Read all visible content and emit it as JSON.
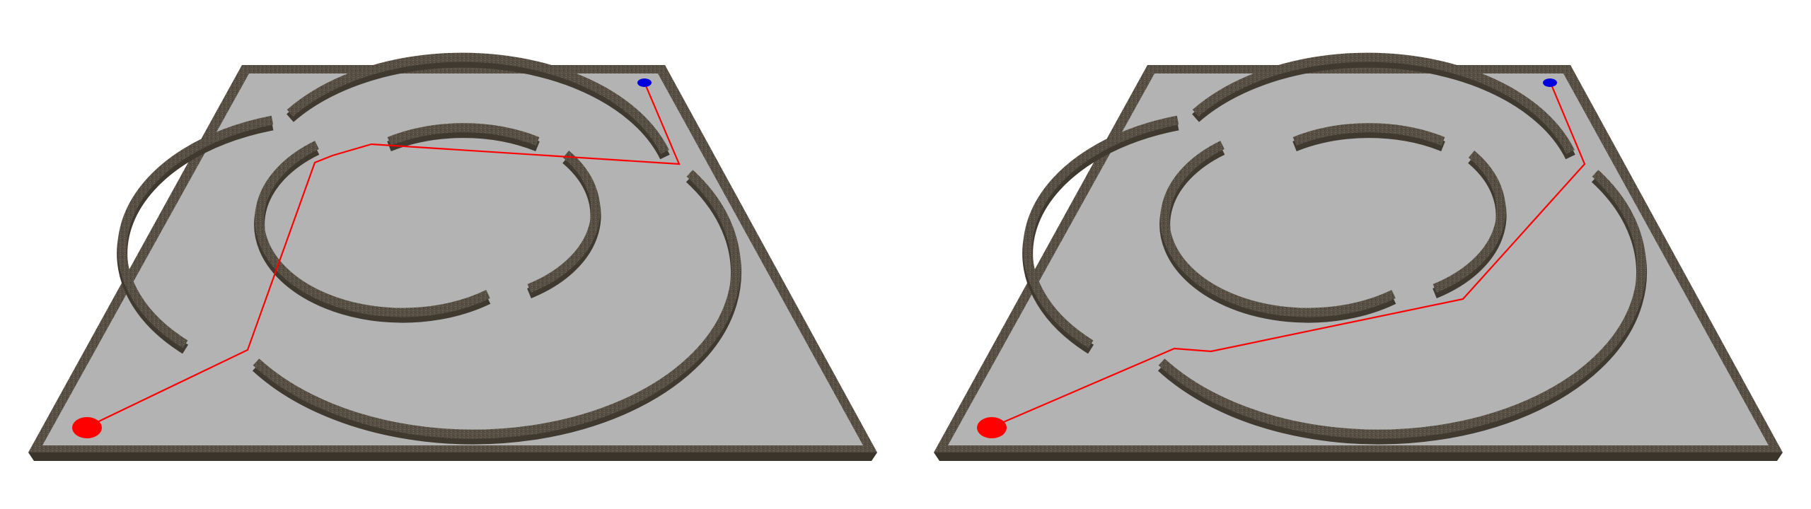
{
  "colors": {
    "background": "#ffffff",
    "floor": "#b3b3b3",
    "wall_top": "#5a5246",
    "wall_side": "#3f3930",
    "wall_texture": "#6b6152",
    "path": "#ff0000",
    "start_marker": "#ff0000",
    "goal_marker": "#0000dd"
  },
  "icons": {
    "start": "start-marker-icon",
    "goal": "goal-marker-icon"
  }
}
